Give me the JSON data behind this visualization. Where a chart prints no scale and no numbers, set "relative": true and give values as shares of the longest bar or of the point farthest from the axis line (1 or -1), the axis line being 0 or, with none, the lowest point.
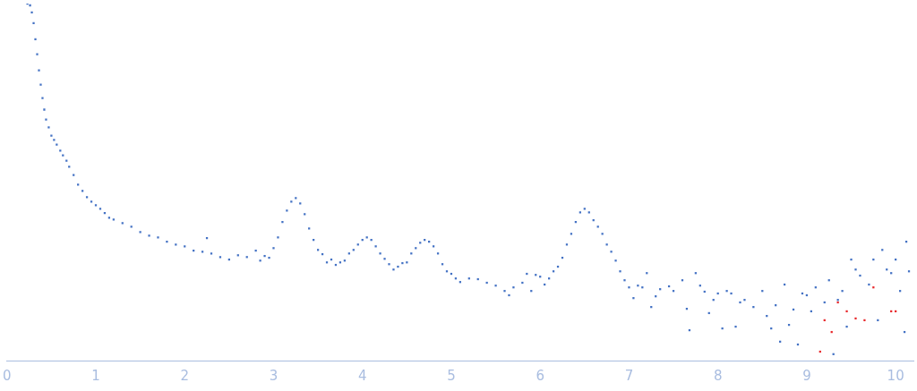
{
  "chart_data": {
    "type": "scatter",
    "relative": true,
    "marker": "square",
    "grid": false,
    "legend": false,
    "tick_labels": "x",
    "xlim": [
      0,
      10.2
    ],
    "xticks": [
      0,
      1,
      2,
      3,
      4,
      5,
      6,
      7,
      8,
      9,
      10
    ],
    "series": [
      {
        "color": "#4472c4",
        "x": [
          0.23,
          0.26,
          0.28,
          0.3,
          0.32,
          0.34,
          0.36,
          0.38,
          0.4,
          0.42,
          0.44,
          0.47,
          0.5,
          0.53,
          0.56,
          0.6,
          0.63,
          0.67,
          0.7,
          0.75,
          0.8,
          0.85,
          0.9,
          0.95,
          1.0,
          1.05,
          1.1,
          1.15,
          1.2,
          1.3,
          1.4,
          1.5,
          1.6,
          1.7,
          1.8,
          1.9,
          2.0,
          2.1,
          2.2,
          2.25,
          2.3,
          2.4,
          2.5,
          2.6,
          2.7,
          2.8,
          2.85,
          2.9,
          2.95,
          3.0,
          3.05,
          3.1,
          3.15,
          3.2,
          3.25,
          3.3,
          3.35,
          3.4,
          3.45,
          3.5,
          3.55,
          3.6,
          3.65,
          3.7,
          3.75,
          3.8,
          3.85,
          3.9,
          3.95,
          4.0,
          4.05,
          4.1,
          4.15,
          4.2,
          4.25,
          4.3,
          4.35,
          4.4,
          4.45,
          4.5,
          4.55,
          4.6,
          4.65,
          4.7,
          4.75,
          4.8,
          4.85,
          4.9,
          4.95,
          5.0,
          5.05,
          5.1,
          5.2,
          5.3,
          5.4,
          5.5,
          5.6,
          5.65,
          5.7,
          5.8,
          5.85,
          5.9,
          5.95,
          6.0,
          6.05,
          6.1,
          6.15,
          6.2,
          6.25,
          6.3,
          6.35,
          6.4,
          6.45,
          6.5,
          6.55,
          6.6,
          6.65,
          6.7,
          6.75,
          6.8,
          6.85,
          6.9,
          6.95,
          7.0,
          7.05,
          7.1,
          7.15,
          7.2,
          7.25,
          7.3,
          7.35,
          7.45,
          7.5,
          7.6,
          7.65,
          7.68,
          7.75,
          7.8,
          7.85,
          7.9,
          7.95,
          8.0,
          8.05,
          8.1,
          8.15,
          8.2,
          8.25,
          8.3,
          8.4,
          8.5,
          8.55,
          8.6,
          8.65,
          8.7,
          8.75,
          8.8,
          8.85,
          8.9,
          8.95,
          9.0,
          9.05,
          9.1,
          9.2,
          9.25,
          9.3,
          9.35,
          9.4,
          9.45,
          9.5,
          9.55,
          9.6,
          9.7,
          9.75,
          9.8,
          9.85,
          9.9,
          9.95,
          10.0,
          10.05,
          10.1,
          10.12,
          10.15
        ],
        "values": [
          1,
          0.995,
          0.975,
          0.945,
          0.9,
          0.858,
          0.813,
          0.773,
          0.735,
          0.703,
          0.675,
          0.653,
          0.63,
          0.618,
          0.605,
          0.588,
          0.575,
          0.56,
          0.543,
          0.52,
          0.493,
          0.475,
          0.458,
          0.445,
          0.435,
          0.425,
          0.413,
          0.4,
          0.395,
          0.385,
          0.375,
          0.36,
          0.35,
          0.345,
          0.333,
          0.325,
          0.32,
          0.308,
          0.305,
          0.343,
          0.3,
          0.29,
          0.283,
          0.295,
          0.29,
          0.308,
          0.28,
          0.293,
          0.288,
          0.315,
          0.345,
          0.388,
          0.42,
          0.445,
          0.455,
          0.44,
          0.41,
          0.37,
          0.338,
          0.31,
          0.298,
          0.275,
          0.283,
          0.268,
          0.275,
          0.28,
          0.3,
          0.31,
          0.325,
          0.338,
          0.345,
          0.338,
          0.32,
          0.3,
          0.285,
          0.27,
          0.255,
          0.263,
          0.273,
          0.275,
          0.3,
          0.315,
          0.33,
          0.338,
          0.333,
          0.32,
          0.3,
          0.27,
          0.25,
          0.243,
          0.23,
          0.22,
          0.23,
          0.228,
          0.218,
          0.21,
          0.195,
          0.183,
          0.205,
          0.218,
          0.243,
          0.195,
          0.24,
          0.235,
          0.213,
          0.23,
          0.25,
          0.263,
          0.288,
          0.325,
          0.355,
          0.388,
          0.415,
          0.425,
          0.415,
          0.393,
          0.375,
          0.355,
          0.325,
          0.305,
          0.28,
          0.25,
          0.225,
          0.205,
          0.175,
          0.21,
          0.205,
          0.245,
          0.15,
          0.18,
          0.2,
          0.208,
          0.195,
          0.225,
          0.145,
          0.085,
          0.245,
          0.21,
          0.193,
          0.133,
          0.17,
          0.188,
          0.09,
          0.195,
          0.188,
          0.095,
          0.163,
          0.17,
          0.15,
          0.195,
          0.125,
          0.09,
          0.155,
          0.053,
          0.213,
          0.1,
          0.143,
          0.045,
          0.188,
          0.183,
          0.138,
          0.205,
          0.163,
          0.225,
          0.018,
          0.17,
          0.195,
          0.095,
          0.283,
          0.255,
          0.238,
          0.213,
          0.283,
          0.113,
          0.31,
          0.255,
          0.245,
          0.283,
          0.195,
          0.08,
          0.333,
          0.25
        ]
      },
      {
        "color": "#e8282b",
        "x": [
          9.15,
          9.2,
          9.28,
          9.35,
          9.45,
          9.55,
          9.65,
          9.75,
          9.95,
          10.0
        ],
        "values": [
          0.025,
          0.113,
          0.08,
          0.163,
          0.138,
          0.118,
          0.113,
          0.205,
          0.138,
          0.138
        ]
      }
    ]
  }
}
